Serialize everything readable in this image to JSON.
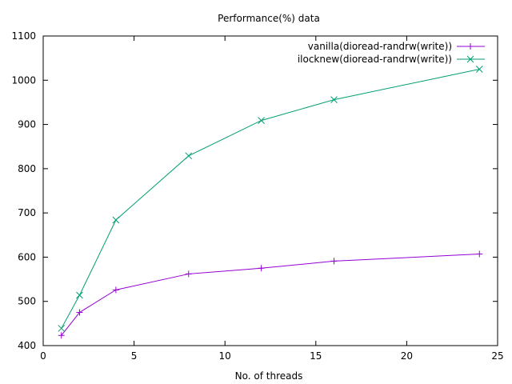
{
  "chart_data": {
    "type": "line",
    "title": "Performance(%) data",
    "xlabel": "No. of threads",
    "ylabel": "",
    "xlim": [
      0,
      25
    ],
    "ylim": [
      400,
      1100
    ],
    "xticks": [
      0,
      5,
      10,
      15,
      20,
      25
    ],
    "yticks": [
      400,
      500,
      600,
      700,
      800,
      900,
      1000,
      1100
    ],
    "grid": false,
    "legend_position": "top-right",
    "series": [
      {
        "name": "vanilla(dioread-randrw(write))",
        "color": "#9400d3",
        "marker": "plus",
        "x": [
          1,
          2,
          4,
          8,
          12,
          16,
          24
        ],
        "values": [
          423,
          475,
          526,
          562,
          575,
          591,
          607
        ]
      },
      {
        "name": "ilocknew(dioread-randrw(write))",
        "color": "#009e73",
        "marker": "cross",
        "x": [
          1,
          2,
          4,
          8,
          12,
          16,
          24
        ],
        "values": [
          439,
          514,
          684,
          829,
          909,
          956,
          1025
        ]
      }
    ]
  }
}
